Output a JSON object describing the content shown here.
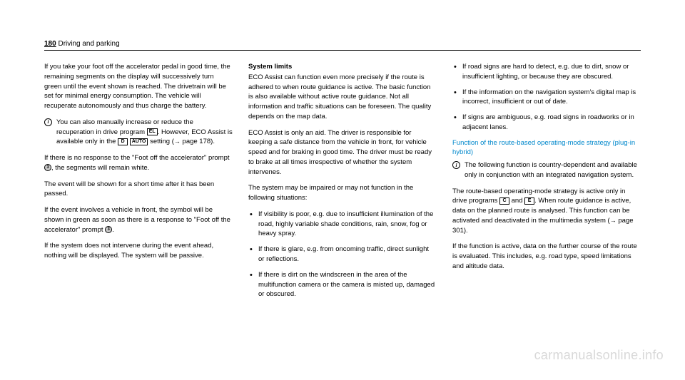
{
  "header": {
    "page": "180",
    "section": "Driving and parking"
  },
  "col1": {
    "p1": "If you take your foot off the accelerator pedal in good time, the remaining segments on the display will successively turn green until the event shown is reached. The drivetrain will be set for minimal energy consumption. The vehicle will recuperate autonomously and thus charge the battery.",
    "info1a": "You can also manually increase or reduce the recuperation in drive program ",
    "badge_el": "EL",
    "info1b": ". However, ECO Assist is available only in the ",
    "badge_d": "D",
    "badge_auto": "AUTO",
    "info1c": " setting (",
    "pageref1": " page 178).",
    "p2a": "If there is no response to the \"Foot off the accelerator\" prompt ",
    "p2b": ", the segments will remain white.",
    "p3": "The event will be shown for a short time after it has been passed.",
    "p4a": "If the event involves a vehicle in front, the symbol will be shown in green as soon as there is a response to \"Foot off the accelerator\" prompt ",
    "p4b": ".",
    "p5": "If the system does not intervene during the event ahead, nothing will be displayed. The system will be passive.",
    "circle3": "3"
  },
  "col2": {
    "title": "System limits",
    "p1": "ECO Assist can function even more precisely if the route is adhered to when route guidance is active. The basic function is also available without active route guidance. Not all information and traffic situations can be foreseen. The quality depends on the map data.",
    "p2": "ECO Assist is only an aid. The driver is responsible for keeping a safe distance from the vehicle in front, for vehicle speed and for braking in good time. The driver must be ready to brake at all times irrespective of whether the system intervenes.",
    "p3": "The system may be impaired or may not function in the following situations:",
    "li1": "If visibility is poor, e.g. due to insufficient illumination of the road, highly variable shade conditions, rain, snow, fog or heavy spray.",
    "li2": "If there is glare, e.g. from oncoming traffic, direct sunlight or reflections.",
    "li3": "If there is dirt on the windscreen in the area of the multifunction camera or the camera is misted up, damaged or obscured."
  },
  "col3": {
    "li1": "If road signs are hard to detect, e.g. due to dirt, snow or insufficient lighting, or because they are obscured.",
    "li2": "If the information on the navigation system's digital map is incorrect, insufficient or out of date.",
    "li3": "If signs are ambiguous, e.g. road signs in roadworks or in adjacent lanes.",
    "title": "Function of the route-based operating-mode strategy (plug-in hybrid)",
    "info1": "The following function is country-dependent and available only in conjunction with an integrated navigation system.",
    "p1a": "The route-based operating-mode strategy is active only in drive programs ",
    "badge_c": "C",
    "and": " and ",
    "badge_e": "E",
    "p1b": ". When route guidance is active, data on the planned route is analysed. This function can be activated and deactivated in the multimedia system (",
    "pageref": " page 301).",
    "p2": "If the function is active, data on the further course of the route is evaluated. This includes, e.g. road type, speed limitations and altitude data."
  },
  "watermark": "carmanualsonline.info",
  "arrow": "→"
}
